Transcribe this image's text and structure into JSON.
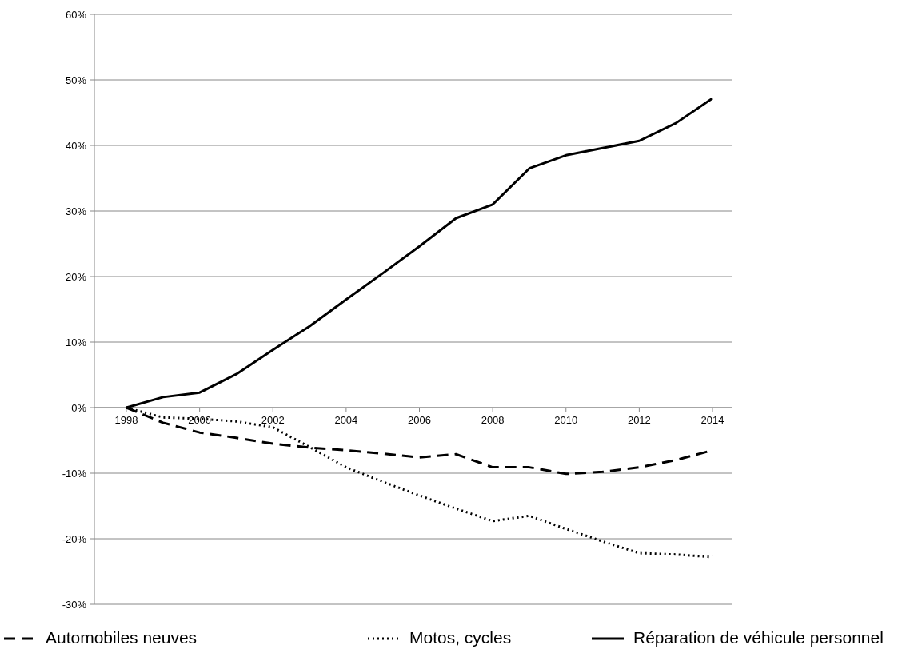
{
  "chart_data": {
    "type": "line",
    "x": [
      1998,
      1999,
      2000,
      2001,
      2002,
      2003,
      2004,
      2005,
      2006,
      2007,
      2008,
      2009,
      2010,
      2011,
      2012,
      2013,
      2014
    ],
    "series": [
      {
        "name": "Automobiles neuves",
        "color": "#000000",
        "line_style": "dashed",
        "values": [
          0,
          -2.3,
          -3.8,
          -4.6,
          -5.5,
          -6.1,
          -6.5,
          -7,
          -7.6,
          -7.1,
          -9.1,
          -9.1,
          -10.1,
          -9.8,
          -9.1,
          -8,
          -6.5
        ]
      },
      {
        "name": "Motos, cycles",
        "color": "#000000",
        "line_style": "dotted",
        "values": [
          0,
          -1.5,
          -1.7,
          -2.1,
          -3,
          -6,
          -9.1,
          -11.3,
          -13.4,
          -15.4,
          -17.3,
          -16.5,
          -18.5,
          -20.4,
          -22.2,
          -22.4,
          -22.8
        ]
      },
      {
        "name": "Réparation de véhicule personnel",
        "color": "#000000",
        "line_style": "solid",
        "values": [
          0,
          1.6,
          2.3,
          5.1,
          8.8,
          12.4,
          16.5,
          20.5,
          24.6,
          28.9,
          31,
          36.5,
          38.5,
          39.6,
          40.7,
          43.4,
          47.2
        ]
      }
    ],
    "xlim": [
      1998,
      2014
    ],
    "xticks": [
      1998,
      2000,
      2002,
      2004,
      2006,
      2008,
      2010,
      2012,
      2014
    ],
    "ylim": [
      -30,
      60
    ],
    "yticks": [
      {
        "value": -30,
        "label": "-30%"
      },
      {
        "value": -20,
        "label": "-20%"
      },
      {
        "value": -10,
        "label": "-10%"
      },
      {
        "value": 0,
        "label": "0%"
      },
      {
        "value": 10,
        "label": "10%"
      },
      {
        "value": 20,
        "label": "20%"
      },
      {
        "value": 30,
        "label": "30%"
      },
      {
        "value": 40,
        "label": "40%"
      },
      {
        "value": 50,
        "label": "50%"
      },
      {
        "value": 60,
        "label": "60%"
      }
    ],
    "grid": "y",
    "legend": "bottom",
    "marker": "none"
  }
}
